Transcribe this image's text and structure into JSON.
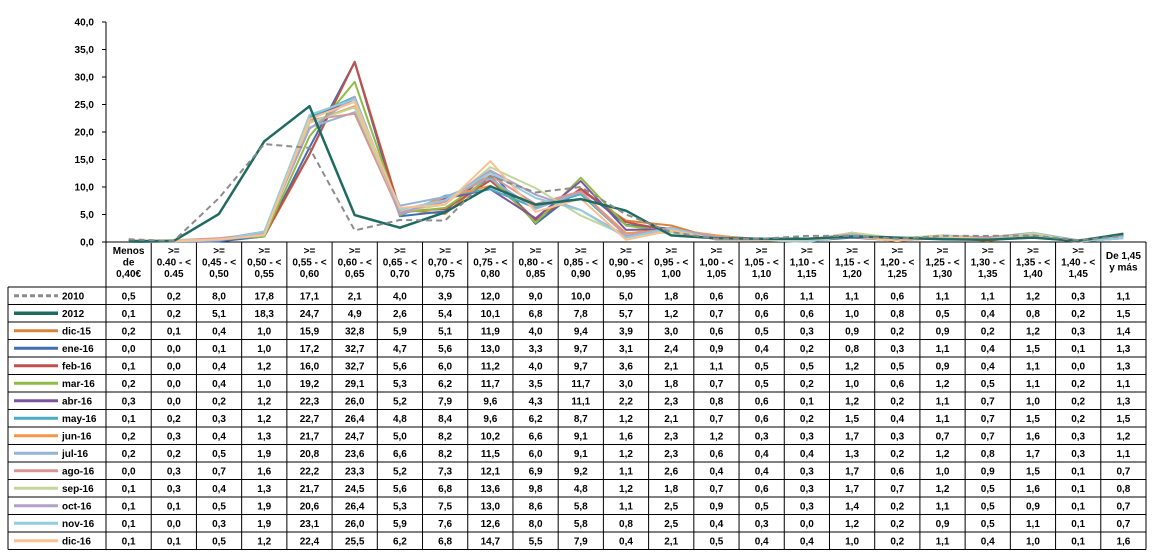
{
  "chart_data": {
    "type": "line",
    "title": "",
    "xlabel": "",
    "ylabel": "",
    "ylim": [
      0,
      40
    ],
    "yticks": [
      "0,0",
      "5,0",
      "10,0",
      "15,0",
      "20,0",
      "25,0",
      "30,0",
      "35,0",
      "40,0"
    ],
    "grid": false,
    "legend": "data-table-left",
    "categories": [
      [
        "Menos",
        "de",
        "0,40€"
      ],
      [
        ">=",
        "0.40 - <",
        "0.45"
      ],
      [
        ">=",
        "0,45 - <",
        "0,50"
      ],
      [
        ">=",
        "0,50 - <",
        "0,55"
      ],
      [
        ">=",
        "0,55 - <",
        "0,60"
      ],
      [
        ">=",
        "0,60 - <",
        "0,65"
      ],
      [
        ">=",
        "0,65 - <",
        "0,70"
      ],
      [
        ">=",
        "0,70 - <",
        "0,75"
      ],
      [
        ">=",
        "0,75 - <",
        "0,80"
      ],
      [
        ">=",
        "0,80 - <",
        "0,85"
      ],
      [
        ">=",
        "0,85 - <",
        "0,90"
      ],
      [
        ">=",
        "0,90 - <",
        "0,95"
      ],
      [
        ">=",
        "0,95 - <",
        "1,00"
      ],
      [
        ">=",
        "1,00 - <",
        "1,05"
      ],
      [
        ">=",
        "1,05 - <",
        "1,10"
      ],
      [
        ">=",
        "1,10 - <",
        "1,15"
      ],
      [
        ">=",
        "1,15 - <",
        "1,20"
      ],
      [
        ">=",
        "1,20 - <",
        "1,25"
      ],
      [
        ">=",
        "1,25 - <",
        "1,30"
      ],
      [
        ">=",
        "1,30 - <",
        "1,35"
      ],
      [
        ">=",
        "1,35 - <",
        "1,40"
      ],
      [
        ">=",
        "1,40 - <",
        "1,45"
      ],
      [
        "De 1,45",
        "y más"
      ]
    ],
    "series": [
      {
        "name": "2010",
        "color": "#8c8c8c",
        "dashed": true,
        "width": 2,
        "values": [
          "0,5",
          "0,2",
          "8,0",
          "17,8",
          "17,1",
          "2,1",
          "4,0",
          "3,9",
          "12,0",
          "9,0",
          "10,0",
          "5,0",
          "1,8",
          "0,6",
          "0,6",
          "1,1",
          "1,1",
          "0,6",
          "1,1",
          "1,1",
          "1,2",
          "0,3",
          "1,1"
        ]
      },
      {
        "name": "2012",
        "color": "#1f6b61",
        "dashed": false,
        "width": 2.5,
        "values": [
          "0,1",
          "0,2",
          "5,1",
          "18,3",
          "24,7",
          "4,9",
          "2,6",
          "5,4",
          "10,1",
          "6,8",
          "7,8",
          "5,7",
          "1,2",
          "0,7",
          "0,6",
          "0,6",
          "1,0",
          "0,8",
          "0,5",
          "0,4",
          "0,8",
          "0,2",
          "1,5"
        ]
      },
      {
        "name": "dic-15",
        "color": "#d9843b",
        "dashed": false,
        "width": 2,
        "values": [
          "0,2",
          "0,1",
          "0,4",
          "1,0",
          "15,9",
          "32,8",
          "5,9",
          "5,1",
          "11,9",
          "4,0",
          "9,4",
          "3,9",
          "3,0",
          "0,6",
          "0,5",
          "0,3",
          "0,9",
          "0,2",
          "0,9",
          "0,2",
          "1,2",
          "0,3",
          "1,4"
        ]
      },
      {
        "name": "ene-16",
        "color": "#3f6fb0",
        "dashed": false,
        "width": 2,
        "values": [
          "0,0",
          "0,0",
          "0,1",
          "1,0",
          "17,2",
          "32,7",
          "4,7",
          "5,6",
          "13,0",
          "3,3",
          "9,7",
          "3,1",
          "2,4",
          "0,9",
          "0,4",
          "0,2",
          "0,8",
          "0,3",
          "1,1",
          "0,4",
          "1,5",
          "0,1",
          "1,3"
        ]
      },
      {
        "name": "feb-16",
        "color": "#c0504d",
        "dashed": false,
        "width": 2,
        "values": [
          "0,1",
          "0,0",
          "0,4",
          "1,2",
          "16,0",
          "32,7",
          "5,6",
          "6,0",
          "11,2",
          "4,0",
          "9,7",
          "3,6",
          "2,1",
          "1,1",
          "0,5",
          "0,5",
          "1,2",
          "0,5",
          "0,9",
          "0,4",
          "1,1",
          "0,0",
          "1,3"
        ]
      },
      {
        "name": "mar-16",
        "color": "#8fbc45",
        "dashed": false,
        "width": 2,
        "values": [
          "0,2",
          "0,0",
          "0,4",
          "1,0",
          "19,2",
          "29,1",
          "5,3",
          "6,2",
          "11,7",
          "3,5",
          "11,7",
          "3,0",
          "1,8",
          "0,7",
          "0,5",
          "0,2",
          "1,0",
          "0,6",
          "1,2",
          "0,5",
          "1,1",
          "0,2",
          "1,1"
        ]
      },
      {
        "name": "abr-16",
        "color": "#7b559f",
        "dashed": false,
        "width": 2,
        "values": [
          "0,3",
          "0,0",
          "0,2",
          "1,2",
          "22,3",
          "26,0",
          "5,2",
          "7,9",
          "9,6",
          "4,3",
          "11,1",
          "2,2",
          "2,3",
          "0,8",
          "0,6",
          "0,1",
          "1,2",
          "0,2",
          "1,1",
          "0,7",
          "1,0",
          "0,2",
          "1,3"
        ]
      },
      {
        "name": "may-16",
        "color": "#4aacc6",
        "dashed": false,
        "width": 2,
        "values": [
          "0,1",
          "0,2",
          "0,3",
          "1,2",
          "22,7",
          "26,4",
          "4,8",
          "8,4",
          "9,6",
          "6,2",
          "8,7",
          "1,2",
          "2,1",
          "0,7",
          "0,6",
          "0,2",
          "1,5",
          "0,4",
          "1,1",
          "0,7",
          "1,5",
          "0,2",
          "1,5"
        ]
      },
      {
        "name": "jun-16",
        "color": "#f79646",
        "dashed": false,
        "width": 2,
        "values": [
          "0,2",
          "0,3",
          "0,4",
          "1,3",
          "21,7",
          "24,7",
          "5,0",
          "8,2",
          "10,2",
          "6,6",
          "9,1",
          "1,6",
          "2,3",
          "1,2",
          "0,3",
          "0,3",
          "1,7",
          "0,3",
          "0,7",
          "0,7",
          "1,6",
          "0,3",
          "1,2"
        ]
      },
      {
        "name": "jul-16",
        "color": "#95b3d7",
        "dashed": false,
        "width": 2,
        "values": [
          "0,2",
          "0,2",
          "0,5",
          "1,9",
          "20,8",
          "23,6",
          "6,6",
          "8,2",
          "11,5",
          "6,0",
          "9,1",
          "1,2",
          "2,3",
          "0,6",
          "0,4",
          "0,4",
          "1,3",
          "0,2",
          "1,2",
          "0,8",
          "1,7",
          "0,3",
          "1,1"
        ]
      },
      {
        "name": "ago-16",
        "color": "#d99694",
        "dashed": false,
        "width": 2,
        "values": [
          "0,0",
          "0,3",
          "0,7",
          "1,6",
          "22,2",
          "23,3",
          "5,2",
          "7,3",
          "12,1",
          "6,9",
          "9,2",
          "1,1",
          "2,6",
          "0,4",
          "0,4",
          "0,3",
          "1,7",
          "0,6",
          "1,0",
          "0,9",
          "1,5",
          "0,1",
          "0,7"
        ]
      },
      {
        "name": "sep-16",
        "color": "#c3d69b",
        "dashed": false,
        "width": 2,
        "values": [
          "0,1",
          "0,3",
          "0,4",
          "1,3",
          "21,7",
          "24,5",
          "5,6",
          "6,8",
          "13,6",
          "9,8",
          "4,8",
          "1,2",
          "1,8",
          "0,7",
          "0,6",
          "0,3",
          "1,7",
          "0,7",
          "1,2",
          "0,5",
          "1,6",
          "0,1",
          "0,8"
        ]
      },
      {
        "name": "oct-16",
        "color": "#b3a2c7",
        "dashed": false,
        "width": 2,
        "values": [
          "0,1",
          "0,1",
          "0,5",
          "1,9",
          "20,6",
          "26,4",
          "5,3",
          "7,5",
          "13,0",
          "8,6",
          "5,8",
          "1,1",
          "2,5",
          "0,9",
          "0,5",
          "0,3",
          "1,4",
          "0,2",
          "1,1",
          "0,5",
          "0,9",
          "0,1",
          "0,7"
        ]
      },
      {
        "name": "nov-16",
        "color": "#93cddd",
        "dashed": false,
        "width": 2,
        "values": [
          "0,1",
          "0,0",
          "0,3",
          "1,9",
          "23,1",
          "26,0",
          "5,9",
          "7,6",
          "12,6",
          "8,0",
          "5,8",
          "0,8",
          "2,5",
          "0,4",
          "0,3",
          "0,0",
          "1,2",
          "0,2",
          "0,9",
          "0,5",
          "1,1",
          "0,1",
          "0,7"
        ]
      },
      {
        "name": "dic-16",
        "color": "#fac090",
        "dashed": false,
        "width": 2,
        "values": [
          "0,1",
          "0,1",
          "0,5",
          "1,2",
          "22,4",
          "25,5",
          "6,2",
          "6,8",
          "14,7",
          "5,5",
          "7,9",
          "0,4",
          "2,1",
          "0,5",
          "0,4",
          "0,4",
          "1,0",
          "0,2",
          "1,1",
          "0,4",
          "1,0",
          "0,1",
          "1,6"
        ]
      }
    ]
  }
}
